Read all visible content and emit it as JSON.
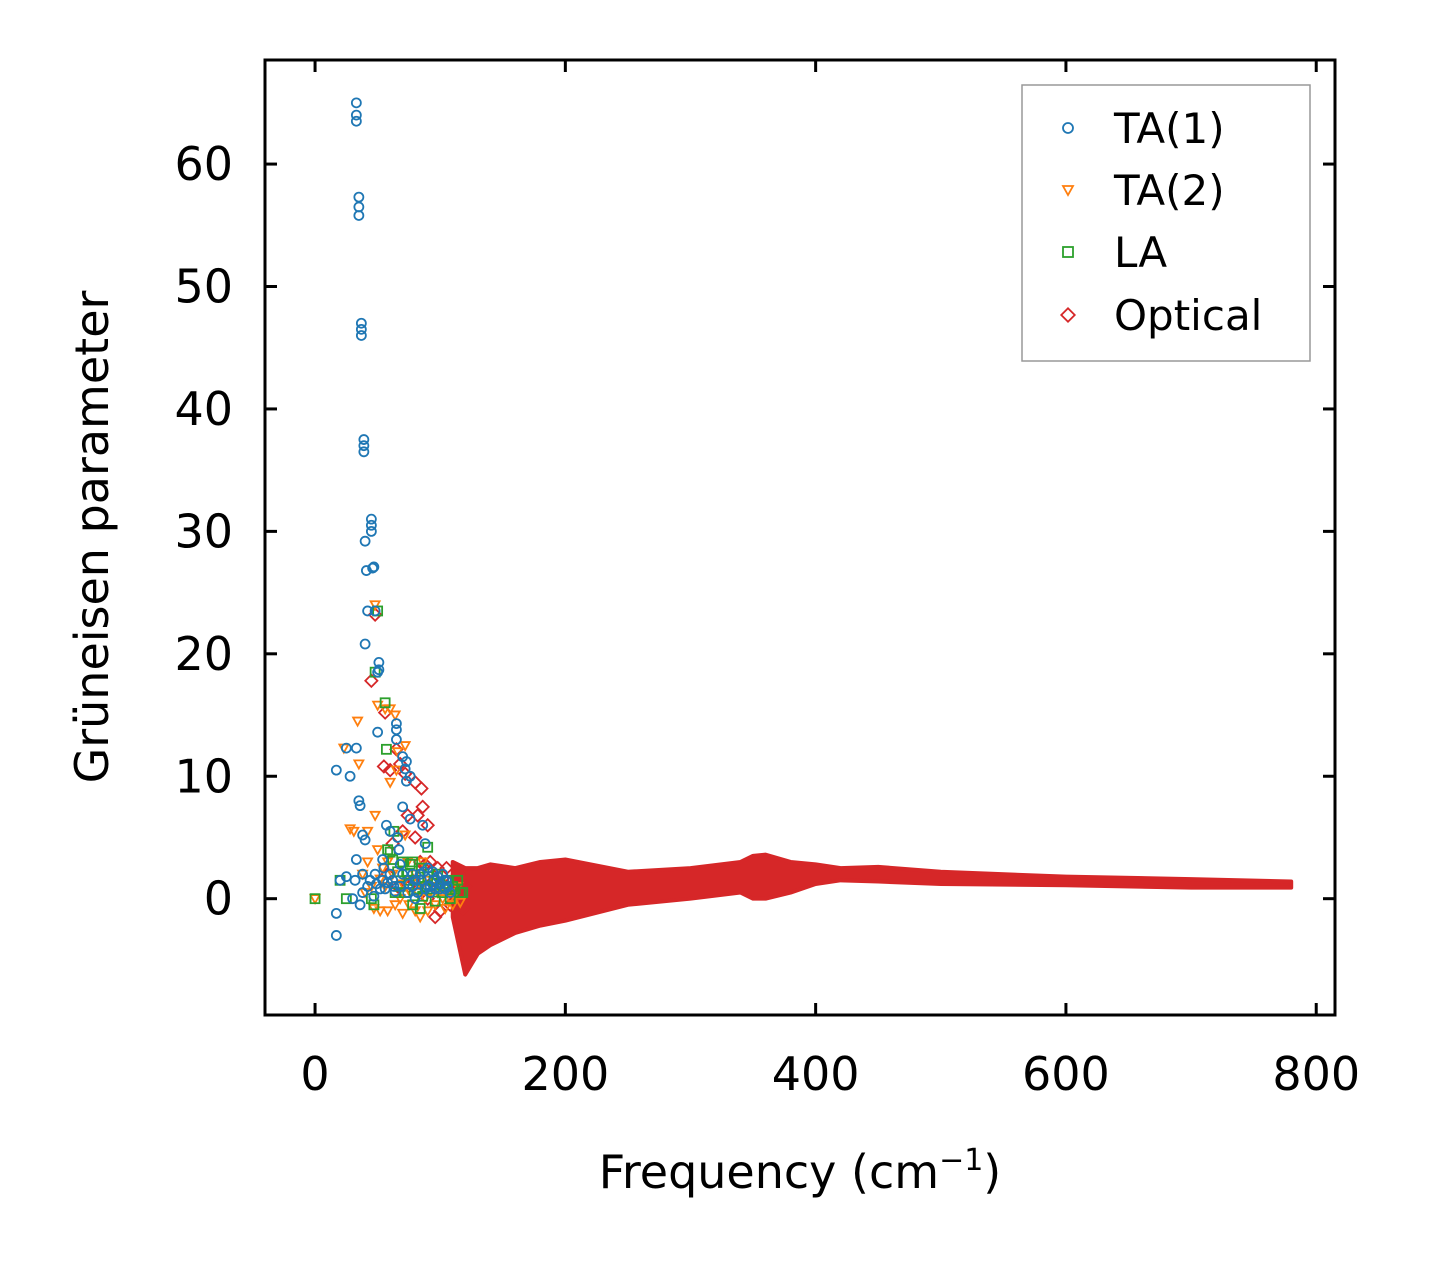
{
  "chart_data": {
    "type": "scatter",
    "title": "",
    "xlabel": "Frequency (cm",
    "xlabel_sup": "−1",
    "xlabel_suffix": ")",
    "ylabel": "Grüneisen parameter",
    "xlim": [
      -40,
      815
    ],
    "ylim": [
      -9.5,
      68.5
    ],
    "xticks": [
      0,
      200,
      400,
      600,
      800
    ],
    "yticks": [
      0,
      10,
      20,
      30,
      40,
      50,
      60
    ],
    "xtick_labels": [
      "0",
      "200",
      "400",
      "600",
      "800"
    ],
    "ytick_labels": [
      "0",
      "10",
      "20",
      "30",
      "40",
      "50",
      "60"
    ],
    "legend_position": "top-right",
    "series": [
      {
        "name": "TA(1)",
        "marker": "circle",
        "color": "#1f77b4",
        "points": [
          [
            17,
            -3
          ],
          [
            17,
            -1.2
          ],
          [
            17,
            10.5
          ],
          [
            20,
            1.5
          ],
          [
            25,
            1.8
          ],
          [
            25,
            12.3
          ],
          [
            28,
            10
          ],
          [
            30,
            0
          ],
          [
            32,
            1.5
          ],
          [
            33,
            3.2
          ],
          [
            33,
            12.3
          ],
          [
            33,
            65
          ],
          [
            33,
            64
          ],
          [
            33,
            63.5
          ],
          [
            35,
            57.3
          ],
          [
            35,
            56.5
          ],
          [
            35,
            55.8
          ],
          [
            35,
            8
          ],
          [
            36,
            -0.5
          ],
          [
            36,
            7.6
          ],
          [
            37,
            47
          ],
          [
            37,
            46.5
          ],
          [
            37,
            46
          ],
          [
            38,
            5.2
          ],
          [
            38,
            0.5
          ],
          [
            38,
            2
          ],
          [
            39,
            37.5
          ],
          [
            39,
            37
          ],
          [
            39,
            36.5
          ],
          [
            40,
            20.8
          ],
          [
            40,
            29.2
          ],
          [
            40,
            4.8
          ],
          [
            41,
            26.8
          ],
          [
            42,
            23.5
          ],
          [
            42,
            1
          ],
          [
            44,
            1.5
          ],
          [
            45,
            31
          ],
          [
            45,
            30.5
          ],
          [
            45,
            30
          ],
          [
            46,
            27
          ],
          [
            47,
            0.2
          ],
          [
            47,
            27.1
          ],
          [
            48,
            23.5
          ],
          [
            48,
            2
          ],
          [
            49,
            1.2
          ],
          [
            50,
            13.6
          ],
          [
            50,
            18.5
          ],
          [
            51,
            19.3
          ],
          [
            51,
            18.7
          ],
          [
            52,
            0.8
          ],
          [
            54,
            1.5
          ],
          [
            54,
            3.2
          ],
          [
            55,
            2.5
          ],
          [
            56,
            0.8
          ],
          [
            57,
            6
          ],
          [
            58,
            1.3
          ],
          [
            60,
            5.5
          ],
          [
            60,
            2
          ],
          [
            62,
            1.5
          ],
          [
            63,
            1
          ],
          [
            64,
            0.6
          ],
          [
            65,
            14.3
          ],
          [
            65,
            13.8
          ],
          [
            65,
            13
          ],
          [
            66,
            5
          ],
          [
            67,
            4
          ],
          [
            68,
            2.8
          ],
          [
            68,
            1
          ],
          [
            70,
            7.5
          ],
          [
            70,
            2
          ],
          [
            70,
            11.6
          ],
          [
            72,
            10.6
          ],
          [
            73,
            11.2
          ],
          [
            73,
            9.6
          ],
          [
            74,
            0.5
          ],
          [
            75,
            1.2
          ],
          [
            76,
            6.5
          ],
          [
            76,
            10
          ],
          [
            78,
            1
          ],
          [
            78,
            2
          ],
          [
            80,
            1.5
          ],
          [
            80,
            0
          ],
          [
            82,
            0.5
          ],
          [
            84,
            2
          ],
          [
            85,
            1.5
          ],
          [
            86,
            6
          ],
          [
            87,
            2.2
          ],
          [
            88,
            0.8
          ],
          [
            88,
            4.5
          ],
          [
            90,
            1
          ],
          [
            90,
            2.5
          ],
          [
            92,
            1
          ],
          [
            92,
            0.5
          ],
          [
            94,
            2.2
          ],
          [
            95,
            1.5
          ],
          [
            96,
            0.8
          ],
          [
            98,
            1.8
          ],
          [
            100,
            0.8
          ],
          [
            100,
            1.2
          ],
          [
            102,
            2
          ],
          [
            103,
            1.5
          ],
          [
            104,
            0.8
          ],
          [
            105,
            1.5
          ],
          [
            106,
            1
          ],
          [
            108,
            0.5
          ]
        ]
      },
      {
        "name": "TA(2)",
        "marker": "triangle-down",
        "color": "#ff7f0e",
        "points": [
          [
            0,
            0
          ],
          [
            23,
            12.3
          ],
          [
            28,
            5.7
          ],
          [
            31,
            5.5
          ],
          [
            34,
            14.5
          ],
          [
            35,
            11
          ],
          [
            38,
            2
          ],
          [
            40,
            0.5
          ],
          [
            42,
            3
          ],
          [
            42,
            5.5
          ],
          [
            45,
            1
          ],
          [
            47,
            -0.8
          ],
          [
            48,
            24
          ],
          [
            48,
            6.8
          ],
          [
            50,
            4
          ],
          [
            50,
            15.8
          ],
          [
            52,
            -1
          ],
          [
            52,
            1.6
          ],
          [
            54,
            2.5
          ],
          [
            56,
            15.5
          ],
          [
            56,
            1
          ],
          [
            58,
            -1
          ],
          [
            58,
            3
          ],
          [
            60,
            9.5
          ],
          [
            60,
            15.5
          ],
          [
            62,
            2
          ],
          [
            64,
            15
          ],
          [
            64,
            -0.5
          ],
          [
            65,
            10.5
          ],
          [
            66,
            12
          ],
          [
            68,
            0
          ],
          [
            70,
            1.2
          ],
          [
            70,
            -1.2
          ],
          [
            72,
            5.2
          ],
          [
            72,
            12.5
          ],
          [
            74,
            3
          ],
          [
            75,
            -0.5
          ],
          [
            76,
            0.5
          ],
          [
            78,
            1.5
          ],
          [
            80,
            -1
          ],
          [
            80,
            2
          ],
          [
            82,
            0.5
          ],
          [
            84,
            -1.5
          ],
          [
            85,
            1
          ],
          [
            86,
            3
          ],
          [
            88,
            0
          ],
          [
            90,
            1.5
          ],
          [
            90,
            -1
          ],
          [
            92,
            0.5
          ],
          [
            94,
            1
          ],
          [
            96,
            -0.5
          ],
          [
            98,
            0.5
          ],
          [
            100,
            1
          ],
          [
            102,
            0
          ],
          [
            104,
            -0.8
          ],
          [
            106,
            0.5
          ],
          [
            108,
            0
          ],
          [
            110,
            -0.5
          ],
          [
            112,
            0.5
          ],
          [
            114,
            1
          ],
          [
            116,
            -0.3
          ]
        ]
      },
      {
        "name": "LA",
        "marker": "square",
        "color": "#2ca02c",
        "points": [
          [
            0,
            0
          ],
          [
            20,
            1.5
          ],
          [
            25,
            0
          ],
          [
            45,
            0
          ],
          [
            47,
            -0.5
          ],
          [
            48,
            18.5
          ],
          [
            50,
            23.5
          ],
          [
            56,
            16
          ],
          [
            57,
            12.2
          ],
          [
            58,
            4
          ],
          [
            60,
            3.8
          ],
          [
            62,
            3.2
          ],
          [
            63,
            5.5
          ],
          [
            64,
            0.5
          ],
          [
            66,
            2.2
          ],
          [
            68,
            1
          ],
          [
            70,
            3
          ],
          [
            72,
            0.5
          ],
          [
            74,
            2
          ],
          [
            75,
            1.5
          ],
          [
            76,
            2.8
          ],
          [
            78,
            -0.5
          ],
          [
            78,
            3
          ],
          [
            80,
            1.5
          ],
          [
            82,
            0.8
          ],
          [
            84,
            -0.8
          ],
          [
            85,
            2.5
          ],
          [
            86,
            0.2
          ],
          [
            88,
            1
          ],
          [
            90,
            4.2
          ],
          [
            90,
            1.8
          ],
          [
            92,
            0.8
          ],
          [
            95,
            1.5
          ],
          [
            96,
            -0.2
          ],
          [
            98,
            2
          ],
          [
            100,
            1.2
          ],
          [
            102,
            0.5
          ],
          [
            104,
            1
          ],
          [
            106,
            1.5
          ],
          [
            108,
            0
          ],
          [
            110,
            1
          ],
          [
            112,
            0.8
          ],
          [
            114,
            1.5
          ],
          [
            116,
            0.5
          ],
          [
            118,
            0.5
          ]
        ]
      },
      {
        "name": "Optical",
        "marker": "diamond",
        "color": "#d62728",
        "points": [
          [
            45,
            17.8
          ],
          [
            48,
            23.2
          ],
          [
            55,
            10.8
          ],
          [
            56,
            15.2
          ],
          [
            58,
            2
          ],
          [
            60,
            10.5
          ],
          [
            62,
            4.5
          ],
          [
            65,
            12.2
          ],
          [
            66,
            1
          ],
          [
            68,
            11
          ],
          [
            70,
            5.5
          ],
          [
            72,
            10.2
          ],
          [
            74,
            6.8
          ],
          [
            75,
            1
          ],
          [
            78,
            1.5
          ],
          [
            80,
            9.5
          ],
          [
            80,
            5
          ],
          [
            82,
            6.8
          ],
          [
            84,
            3
          ],
          [
            85,
            9
          ],
          [
            86,
            7.5
          ],
          [
            88,
            2.8
          ],
          [
            90,
            6
          ],
          [
            90,
            0
          ],
          [
            92,
            3
          ],
          [
            95,
            1.5
          ],
          [
            96,
            -1.5
          ],
          [
            98,
            2.5
          ],
          [
            100,
            -1
          ],
          [
            102,
            1
          ],
          [
            105,
            2.5
          ],
          [
            108,
            -0.5
          ],
          [
            110,
            1.5
          ],
          [
            112,
            0.5
          ],
          [
            115,
            2
          ],
          [
            118,
            -0.8
          ],
          [
            120,
            1
          ]
        ],
        "band": {
          "freq": [
            110,
            120,
            130,
            140,
            160,
            180,
            200,
            250,
            300,
            340,
            350,
            360,
            380,
            400,
            420,
            450,
            500,
            600,
            700,
            780
          ],
          "upper": [
            3,
            2.5,
            2.5,
            2.8,
            2.5,
            3,
            3.2,
            2.2,
            2.5,
            3,
            3.5,
            3.6,
            3,
            2.8,
            2.5,
            2.6,
            2.2,
            1.8,
            1.6,
            1.4
          ],
          "lower": [
            -1.5,
            -6.2,
            -4.5,
            -3.8,
            -2.8,
            -2.2,
            -1.8,
            -0.5,
            0,
            0.5,
            0,
            0,
            0.5,
            1.2,
            1.5,
            1.4,
            1.2,
            1.1,
            0.9,
            0.9
          ]
        }
      }
    ]
  },
  "colors": {
    "ta1": "#1f77b4",
    "ta2": "#ff7f0e",
    "la": "#2ca02c",
    "optical": "#d62728"
  }
}
